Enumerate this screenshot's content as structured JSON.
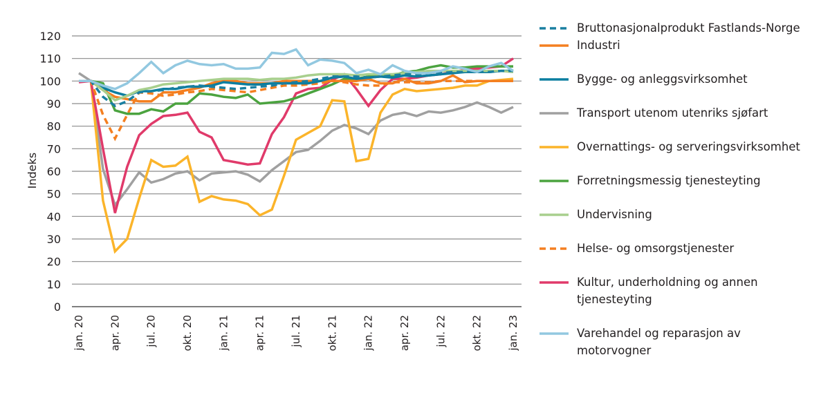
{
  "chart_data": {
    "type": "line",
    "title": "",
    "xlabel": "",
    "ylabel": "Indeks",
    "ylim": [
      0,
      120
    ],
    "yticks": [
      "0",
      "10",
      "20",
      "30",
      "40",
      "50",
      "60",
      "70",
      "80",
      "90",
      "100",
      "110",
      "120"
    ],
    "grid": true,
    "legend_position": "right",
    "x": [
      "jan. 20",
      "feb. 20",
      "mar. 20",
      "apr. 20",
      "mai 20",
      "jun. 20",
      "jul. 20",
      "aug. 20",
      "sep. 20",
      "okt. 20",
      "nov. 20",
      "des. 20",
      "jan. 21",
      "feb. 21",
      "mar. 21",
      "apr. 21",
      "mai 21",
      "jun. 21",
      "jul. 21",
      "aug. 21",
      "sep. 21",
      "okt. 21",
      "nov. 21",
      "des. 21",
      "jan. 22",
      "feb. 22",
      "mar. 22",
      "apr. 22",
      "mai 22",
      "jun. 22",
      "jul. 22",
      "aug. 22",
      "sep. 22",
      "okt. 22",
      "nov. 22",
      "des. 22",
      "jan. 23"
    ],
    "xtick_labels": [
      "jan. 20",
      "apr. 20",
      "jul. 20",
      "okt. 20",
      "jan. 21",
      "apr. 21",
      "jul. 21",
      "okt. 21",
      "jan. 22",
      "apr. 22",
      "jul. 22",
      "okt. 22",
      "jan. 23"
    ],
    "series": [
      {
        "name": "Bruttonasjonalprodukt Fastlands-Norge",
        "color": "#1a7fa0",
        "dash": true,
        "values": [
          100,
          100,
          93,
          89,
          91,
          95,
          95.5,
          96,
          97,
          97.5,
          98,
          97.5,
          97,
          96.5,
          97,
          97.5,
          98,
          99,
          99.5,
          100,
          101,
          102,
          102,
          102,
          101.5,
          102,
          102.5,
          103,
          103,
          103.5,
          103.5,
          104,
          104,
          104,
          104,
          104.5,
          104.5
        ]
      },
      {
        "name": "Industri",
        "color": "#f47f20",
        "dash": false,
        "values": [
          100,
          100,
          96,
          93,
          92,
          91,
          91,
          95,
          95,
          96,
          97,
          99,
          100,
          100,
          99,
          99,
          99,
          100,
          100,
          100,
          100,
          100,
          100,
          100,
          101,
          99,
          99,
          101,
          99,
          99,
          100,
          102.5,
          99.5,
          100,
          100,
          100,
          100
        ]
      },
      {
        "name": "Bygge- og anleggsvirksomhet",
        "color": "#0b7ea0",
        "dash": false,
        "values": [
          100,
          100,
          97,
          95,
          93.5,
          95.5,
          95.5,
          96.5,
          96.5,
          97.5,
          97.5,
          98,
          99.5,
          99,
          98.5,
          98.5,
          99,
          99,
          99,
          99,
          100,
          101.5,
          102,
          101,
          101.5,
          102,
          101.5,
          102.5,
          102,
          102.5,
          103,
          103.5,
          104,
          104,
          104,
          104.5,
          104.5
        ]
      },
      {
        "name": "Transport utenom utenriks sjøfart",
        "color": "#a0a0a0",
        "dash": false,
        "values": [
          103.5,
          100,
          61,
          45,
          52,
          59.5,
          55,
          56.5,
          59,
          60,
          56,
          59,
          59.5,
          60,
          58.5,
          55.5,
          60.5,
          64.5,
          68.5,
          69.5,
          73.5,
          78,
          80.5,
          79,
          76.5,
          82.5,
          85,
          86,
          84.5,
          86.5,
          86,
          87,
          88.5,
          90.5,
          88.5,
          86,
          88.5
        ]
      },
      {
        "name": "Overnattings- og serveringsvirksomhet",
        "color": "#fbb42a",
        "dash": false,
        "values": [
          100,
          100,
          47,
          24.5,
          30,
          48,
          65,
          62,
          62.5,
          66.5,
          46.5,
          49,
          47.5,
          47,
          45.5,
          40.5,
          43,
          58,
          74,
          77,
          80,
          91.5,
          91,
          64.5,
          65.5,
          86,
          94,
          96.5,
          95.5,
          96,
          96.5,
          97,
          98,
          98,
          100,
          100.5,
          101
        ]
      },
      {
        "name": "Forretningsmessig tjenesteyting",
        "color": "#4ba33f",
        "dash": false,
        "values": [
          100,
          100,
          99,
          87,
          85.5,
          85.5,
          87.5,
          86.5,
          90,
          90,
          94.5,
          94,
          93,
          92.5,
          94,
          90,
          90.5,
          91,
          92.5,
          94.5,
          96.5,
          98.5,
          101,
          101,
          102,
          102,
          102.5,
          104,
          104.5,
          106,
          107,
          106,
          106,
          106.5,
          106.5,
          106.5,
          106.5
        ]
      },
      {
        "name": "Undervisning",
        "color": "#a8cf8d",
        "dash": false,
        "values": [
          100,
          100,
          96,
          91.5,
          93.5,
          96,
          97,
          98.5,
          99,
          99.5,
          100,
          100.5,
          101,
          101,
          101,
          100.5,
          101,
          101,
          101.5,
          102.5,
          103,
          103,
          103,
          102.5,
          103,
          103,
          103,
          103.5,
          104,
          104.5,
          104.5,
          104.5,
          104.5,
          104.5,
          104.5,
          104.5,
          104
        ]
      },
      {
        "name": "Helse- og omsorgstjenester",
        "color": "#f47f20",
        "dash": true,
        "values": [
          100,
          100,
          85,
          74.5,
          85,
          95,
          94.5,
          93.5,
          94,
          95,
          95.5,
          96.5,
          96,
          95.5,
          95,
          96,
          97,
          98,
          98,
          98.5,
          99,
          100,
          99.5,
          98.5,
          98,
          98,
          99.5,
          99.5,
          99.5,
          99.5,
          100,
          100,
          100,
          100,
          100,
          100,
          100
        ]
      },
      {
        "name": "Kultur, underholdning og annen tjenesteyting",
        "color": "#e03a6a",
        "dash": false,
        "values": [
          99.5,
          100,
          70,
          41.5,
          62,
          76,
          81,
          84.5,
          85,
          86,
          77.5,
          75,
          65,
          64,
          63,
          63.5,
          76.5,
          84,
          94.5,
          96.5,
          97,
          100.5,
          103,
          96.5,
          89,
          96,
          101,
          101,
          101.5,
          102.5,
          103,
          104,
          105,
          105.5,
          106,
          106.5,
          110
        ]
      },
      {
        "name": "Varehandel og reparasjon av motorvogner",
        "color": "#92c8e0",
        "dash": false,
        "values": [
          100,
          100,
          98,
          96.5,
          99,
          103.5,
          108.5,
          103.5,
          107,
          109,
          107.5,
          107,
          107.5,
          105.5,
          105.5,
          106,
          112.5,
          112,
          114,
          107,
          109.5,
          109,
          108,
          103.5,
          105,
          103,
          107,
          104.5,
          103.5,
          103.5,
          104.5,
          106.5,
          105.5,
          104,
          106.5,
          108,
          104.5
        ]
      }
    ]
  }
}
